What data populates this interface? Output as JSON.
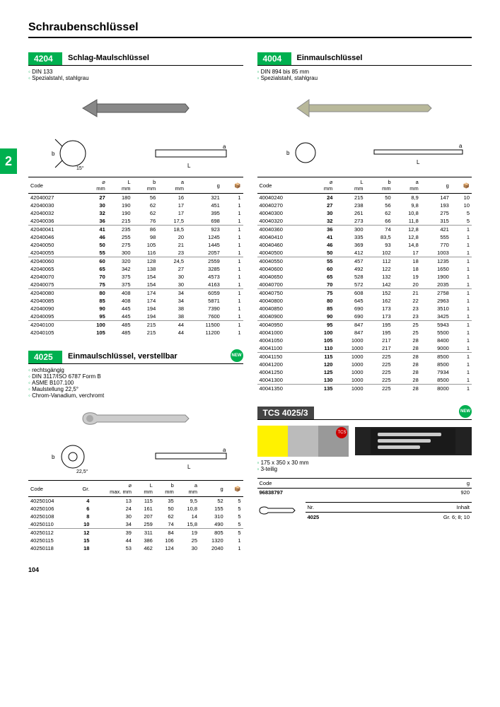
{
  "pageTitle": "Schraubenschlüssel",
  "pageNumber": "104",
  "sideTab": "2",
  "s4204": {
    "code": "4204",
    "title": "Schlag-Maulschlüssel",
    "specs": [
      "DIN 133",
      "Spezialstahl, stahlgrau"
    ],
    "headers": [
      "Code",
      "⌀\nmm",
      "L\nmm",
      "b\nmm",
      "a\nmm",
      "g",
      "📦"
    ],
    "groups": [
      [
        [
          "42040027",
          "27",
          "180",
          "56",
          "16",
          "321",
          "1"
        ],
        [
          "42040030",
          "30",
          "190",
          "62",
          "17",
          "451",
          "1"
        ],
        [
          "42040032",
          "32",
          "190",
          "62",
          "17",
          "395",
          "1"
        ],
        [
          "42040036",
          "36",
          "215",
          "76",
          "17,5",
          "698",
          "1"
        ]
      ],
      [
        [
          "42040041",
          "41",
          "235",
          "86",
          "18,5",
          "923",
          "1"
        ],
        [
          "42040046",
          "46",
          "255",
          "98",
          "20",
          "1245",
          "1"
        ],
        [
          "42040050",
          "50",
          "275",
          "105",
          "21",
          "1445",
          "1"
        ],
        [
          "42040055",
          "55",
          "300",
          "116",
          "23",
          "2057",
          "1"
        ]
      ],
      [
        [
          "42040060",
          "60",
          "320",
          "128",
          "24,5",
          "2559",
          "1"
        ],
        [
          "42040065",
          "65",
          "342",
          "138",
          "27",
          "3285",
          "1"
        ],
        [
          "42040070",
          "70",
          "375",
          "154",
          "30",
          "4573",
          "1"
        ],
        [
          "42040075",
          "75",
          "375",
          "154",
          "30",
          "4163",
          "1"
        ]
      ],
      [
        [
          "42040080",
          "80",
          "408",
          "174",
          "34",
          "6059",
          "1"
        ],
        [
          "42040085",
          "85",
          "408",
          "174",
          "34",
          "5871",
          "1"
        ],
        [
          "42040090",
          "90",
          "445",
          "194",
          "38",
          "7390",
          "1"
        ],
        [
          "42040095",
          "95",
          "445",
          "194",
          "38",
          "7600",
          "1"
        ]
      ],
      [
        [
          "42040100",
          "100",
          "485",
          "215",
          "44",
          "11500",
          "1"
        ],
        [
          "42040105",
          "105",
          "485",
          "215",
          "44",
          "11200",
          "1"
        ]
      ]
    ]
  },
  "s4004": {
    "code": "4004",
    "title": "Einmaulschlüssel",
    "specs": [
      "DIN 894 bis 85 mm",
      "Spezialstahl, stahlgrau"
    ],
    "headers": [
      "Code",
      "⌀\nmm",
      "L\nmm",
      "b\nmm",
      "a\nmm",
      "g",
      "📦"
    ],
    "groups": [
      [
        [
          "40040240",
          "24",
          "215",
          "50",
          "8,9",
          "147",
          "10"
        ],
        [
          "40040270",
          "27",
          "238",
          "56",
          "9,8",
          "193",
          "10"
        ],
        [
          "40040300",
          "30",
          "261",
          "62",
          "10,8",
          "275",
          "5"
        ],
        [
          "40040320",
          "32",
          "273",
          "66",
          "11,8",
          "315",
          "5"
        ]
      ],
      [
        [
          "40040360",
          "36",
          "300",
          "74",
          "12,8",
          "421",
          "1"
        ],
        [
          "40040410",
          "41",
          "335",
          "83,5",
          "12,8",
          "555",
          "1"
        ],
        [
          "40040460",
          "46",
          "369",
          "93",
          "14,8",
          "770",
          "1"
        ],
        [
          "40040500",
          "50",
          "412",
          "102",
          "17",
          "1003",
          "1"
        ]
      ],
      [
        [
          "40040550",
          "55",
          "457",
          "112",
          "18",
          "1235",
          "1"
        ],
        [
          "40040600",
          "60",
          "492",
          "122",
          "18",
          "1650",
          "1"
        ],
        [
          "40040650",
          "65",
          "528",
          "132",
          "19",
          "1900",
          "1"
        ],
        [
          "40040700",
          "70",
          "572",
          "142",
          "20",
          "2035",
          "1"
        ]
      ],
      [
        [
          "40040750",
          "75",
          "608",
          "152",
          "21",
          "2758",
          "1"
        ],
        [
          "40040800",
          "80",
          "645",
          "162",
          "22",
          "2963",
          "1"
        ],
        [
          "40040850",
          "85",
          "690",
          "173",
          "23",
          "3510",
          "1"
        ],
        [
          "40040900",
          "90",
          "690",
          "173",
          "23",
          "3425",
          "1"
        ]
      ],
      [
        [
          "40040950",
          "95",
          "847",
          "195",
          "25",
          "5943",
          "1"
        ],
        [
          "40041000",
          "100",
          "847",
          "195",
          "25",
          "5500",
          "1"
        ],
        [
          "40041050",
          "105",
          "1000",
          "217",
          "28",
          "8400",
          "1"
        ],
        [
          "40041100",
          "110",
          "1000",
          "217",
          "28",
          "9000",
          "1"
        ]
      ],
      [
        [
          "40041150",
          "115",
          "1000",
          "225",
          "28",
          "8500",
          "1"
        ],
        [
          "40041200",
          "120",
          "1000",
          "225",
          "28",
          "8500",
          "1"
        ],
        [
          "40041250",
          "125",
          "1000",
          "225",
          "28",
          "7934",
          "1"
        ],
        [
          "40041300",
          "130",
          "1000",
          "225",
          "28",
          "8500",
          "1"
        ]
      ],
      [
        [
          "40041350",
          "135",
          "1000",
          "225",
          "28",
          "8000",
          "1"
        ]
      ]
    ]
  },
  "s4025": {
    "code": "4025",
    "title": "Einmaulschlüssel, verstellbar",
    "specs": [
      "rechtsgängig",
      "DIN 3117/ISO 6787 Form B",
      "ASME B107.100",
      "Maulstellung 22,5°",
      "Chrom-Vanadium, verchromt"
    ],
    "headers": [
      "Code",
      "Gr.",
      "⌀\nmax. mm",
      "L\nmm",
      "b\nmm",
      "a\nmm",
      "g",
      "📦"
    ],
    "groups": [
      [
        [
          "40250104",
          "4",
          "13",
          "115",
          "35",
          "9,5",
          "52",
          "5"
        ],
        [
          "40250106",
          "6",
          "24",
          "161",
          "50",
          "10,8",
          "155",
          "5"
        ],
        [
          "40250108",
          "8",
          "30",
          "207",
          "62",
          "14",
          "310",
          "5"
        ],
        [
          "40250110",
          "10",
          "34",
          "259",
          "74",
          "15,8",
          "490",
          "5"
        ]
      ],
      [
        [
          "40250112",
          "12",
          "39",
          "311",
          "84",
          "19",
          "805",
          "5"
        ],
        [
          "40250115",
          "15",
          "44",
          "386",
          "106",
          "25",
          "1320",
          "1"
        ],
        [
          "40250118",
          "18",
          "53",
          "462",
          "124",
          "30",
          "2040",
          "1"
        ]
      ]
    ]
  },
  "sTCS": {
    "code": "TCS 4025/3",
    "specs": [
      "175 x 350 x 30 mm",
      "3-teilig"
    ],
    "swatches": [
      "#fff200",
      "#bbbbbb",
      "#999999"
    ],
    "headers": [
      "Code",
      "g"
    ],
    "rows": [
      [
        "96838797",
        "920"
      ]
    ],
    "contentHeaders": [
      "Nr.",
      "Inhalt"
    ],
    "contentRows": [
      [
        "4025",
        "Gr. 6; 8; 10"
      ]
    ],
    "newLabel": "NEW",
    "tcsLabel": "TCS"
  },
  "newLabel": "NEW"
}
